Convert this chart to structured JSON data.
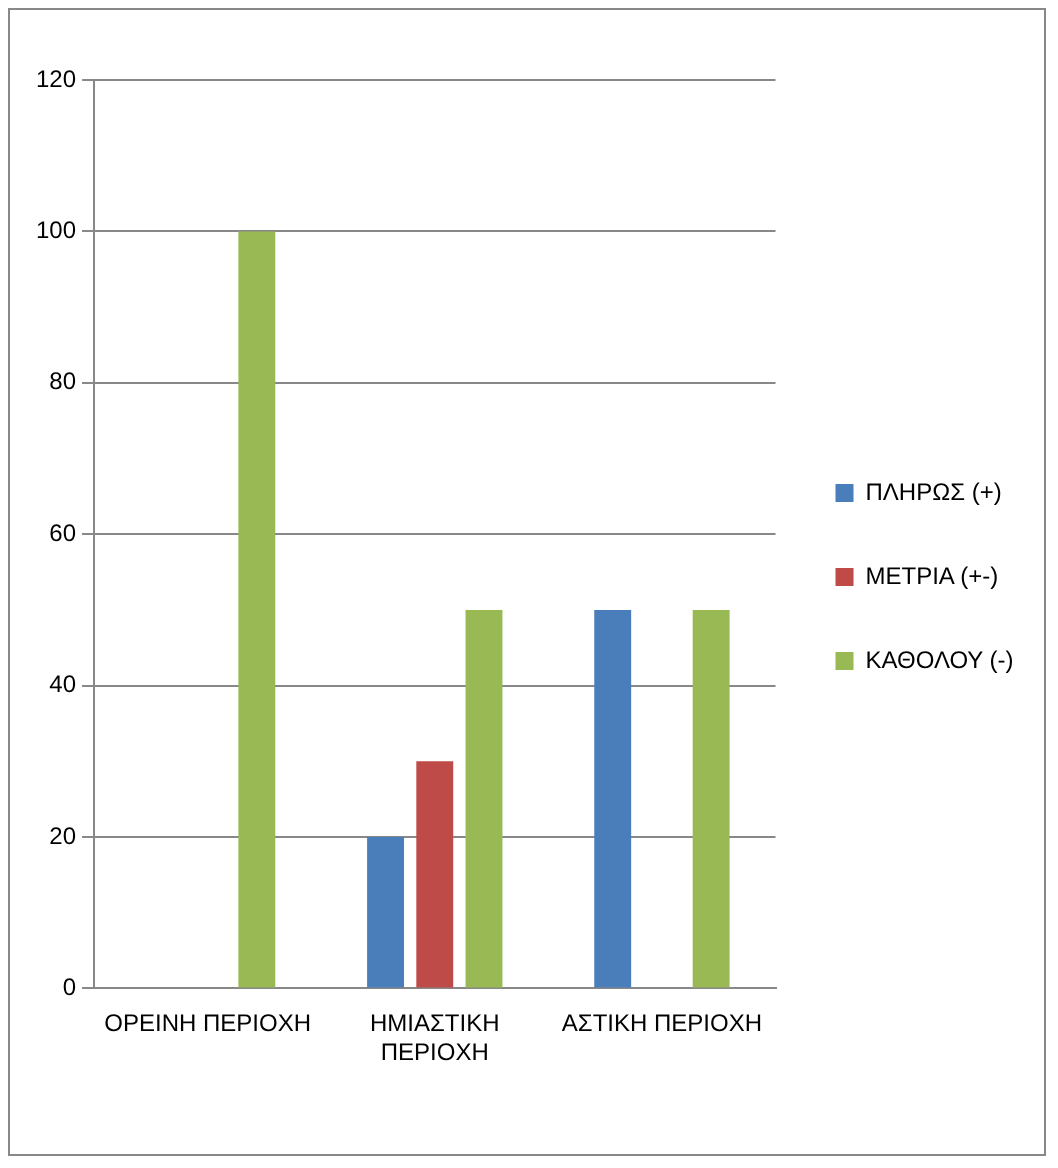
{
  "chart_data": {
    "type": "bar",
    "categories": [
      "ΟΡΕΙΝΗ ΠΕΡΙΟΧΗ",
      "ΗΜΙΑΣΤΙΚΗ ΠΕΡΙΟΧΗ",
      "ΑΣΤΙΚΗ ΠΕΡΙΟΧΗ"
    ],
    "series": [
      {
        "name": "ΠΛΗΡΩΣ (+)",
        "color": "#4a7ebb",
        "values": [
          0,
          20,
          50
        ]
      },
      {
        "name": "ΜΕΤΡΙΑ (+-)",
        "color": "#be4b48",
        "values": [
          0,
          30,
          0
        ]
      },
      {
        "name": "ΚΑΘΟΛΟΥ (-)",
        "color": "#98b954",
        "values": [
          100,
          50,
          50
        ]
      }
    ],
    "ylim": [
      0,
      120
    ],
    "yticks": [
      0,
      20,
      40,
      60,
      80,
      100,
      120
    ],
    "grid": "y",
    "legend": "right"
  }
}
